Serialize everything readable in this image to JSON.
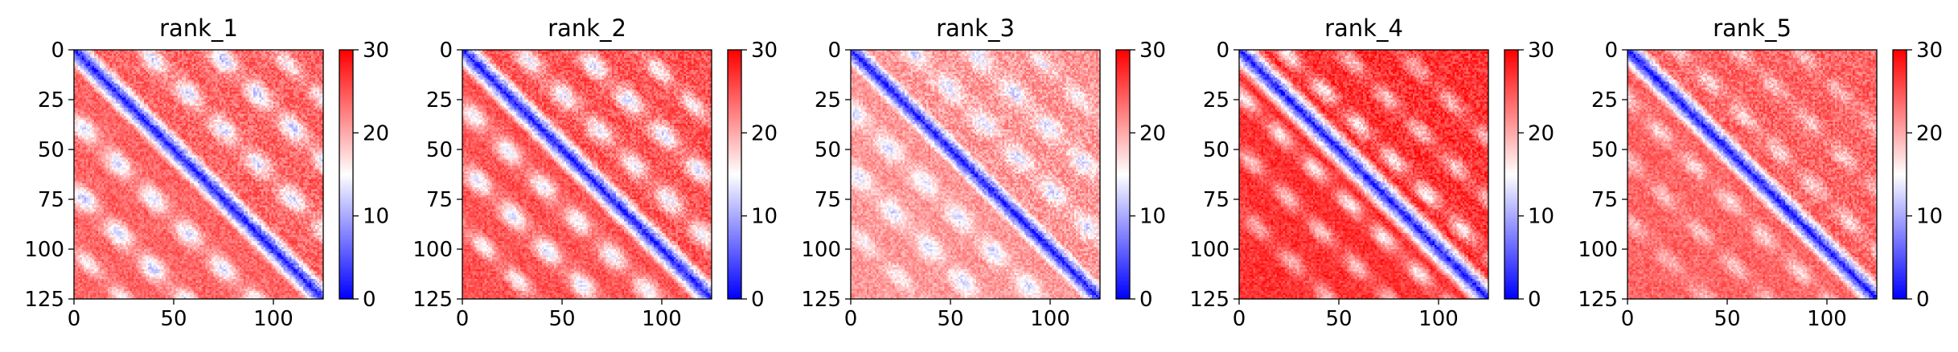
{
  "figure": {
    "background": "#ffffff"
  },
  "colormap": {
    "name": "bwr",
    "low": "#0000ff",
    "mid": "#ffffff",
    "high": "#ff0000"
  },
  "chart_data": [
    {
      "type": "heatmap",
      "title": "rank_1",
      "matrix_size": 125,
      "xlim": [
        0,
        125
      ],
      "ylim": [
        125,
        0
      ],
      "xticks": [
        0,
        50,
        100
      ],
      "yticks": [
        0,
        25,
        50,
        75,
        100,
        125
      ],
      "colorbar": {
        "vmin": 0,
        "vmax": 30,
        "ticks": [
          0,
          10,
          20,
          30
        ]
      },
      "diagonal_value": 1,
      "background_value": 24,
      "side_bands": [
        {
          "offset": 35,
          "value": 13,
          "width": 5
        },
        {
          "offset": 70,
          "value": 12,
          "width": 5
        },
        {
          "offset": 100,
          "value": 15,
          "width": 4
        }
      ]
    },
    {
      "type": "heatmap",
      "title": "rank_2",
      "matrix_size": 125,
      "xlim": [
        0,
        125
      ],
      "ylim": [
        125,
        0
      ],
      "xticks": [
        0,
        50,
        100
      ],
      "yticks": [
        0,
        25,
        50,
        75,
        100,
        125
      ],
      "colorbar": {
        "vmin": 0,
        "vmax": 30,
        "ticks": [
          0,
          10,
          20,
          30
        ]
      },
      "diagonal_value": 1,
      "background_value": 25,
      "side_bands": [
        {
          "offset": 28,
          "value": 14,
          "width": 5
        },
        {
          "offset": 58,
          "value": 13,
          "width": 5
        },
        {
          "offset": 88,
          "value": 15,
          "width": 4
        }
      ]
    },
    {
      "type": "heatmap",
      "title": "rank_3",
      "matrix_size": 125,
      "xlim": [
        0,
        125
      ],
      "ylim": [
        125,
        0
      ],
      "xticks": [
        0,
        50,
        100
      ],
      "yticks": [
        0,
        25,
        50,
        75,
        100,
        125
      ],
      "colorbar": {
        "vmin": 0,
        "vmax": 30,
        "ticks": [
          0,
          10,
          20,
          30
        ]
      },
      "diagonal_value": 1,
      "background_value": 21,
      "side_bands": [
        {
          "offset": 30,
          "value": 13,
          "width": 5
        },
        {
          "offset": 60,
          "value": 13,
          "width": 5
        },
        {
          "offset": 90,
          "value": 15,
          "width": 4
        }
      ]
    },
    {
      "type": "heatmap",
      "title": "rank_4",
      "matrix_size": 125,
      "xlim": [
        0,
        125
      ],
      "ylim": [
        125,
        0
      ],
      "xticks": [
        0,
        50,
        100
      ],
      "yticks": [
        0,
        25,
        50,
        75,
        100,
        125
      ],
      "colorbar": {
        "vmin": 0,
        "vmax": 30,
        "ticks": [
          0,
          10,
          20,
          30
        ]
      },
      "diagonal_value": 1,
      "background_value": 27,
      "side_bands": [
        {
          "offset": 22,
          "value": 16,
          "width": 4
        },
        {
          "offset": 50,
          "value": 18,
          "width": 4
        },
        {
          "offset": 80,
          "value": 19,
          "width": 4
        }
      ]
    },
    {
      "type": "heatmap",
      "title": "rank_5",
      "matrix_size": 125,
      "xlim": [
        0,
        125
      ],
      "ylim": [
        125,
        0
      ],
      "xticks": [
        0,
        50,
        100
      ],
      "yticks": [
        0,
        25,
        50,
        75,
        100,
        125
      ],
      "colorbar": {
        "vmin": 0,
        "vmax": 30,
        "ticks": [
          0,
          10,
          20,
          30
        ]
      },
      "diagonal_value": 1,
      "background_value": 24,
      "side_bands": [
        {
          "offset": 25,
          "value": 17,
          "width": 4
        },
        {
          "offset": 55,
          "value": 18,
          "width": 4
        },
        {
          "offset": 85,
          "value": 19,
          "width": 4
        }
      ]
    }
  ]
}
